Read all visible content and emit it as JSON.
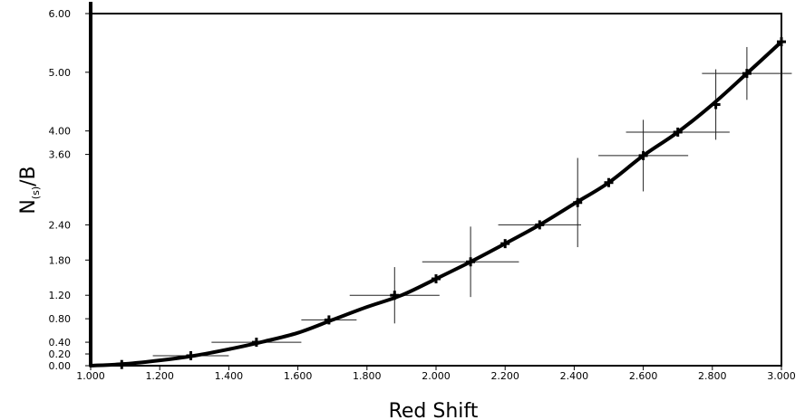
{
  "chart_data": {
    "type": "scatter",
    "xlabel": "Red Shift",
    "ylabel_main": "N",
    "ylabel_sub": "(s)",
    "ylabel_tail": "/B",
    "xlim": [
      1.0,
      3.0
    ],
    "ylim": [
      0.0,
      6.0
    ],
    "x_ticks": [
      1.0,
      1.2,
      1.4,
      1.6,
      1.8,
      2.0,
      2.2,
      2.4,
      2.6,
      2.8,
      3.0
    ],
    "x_tick_labels": [
      "1.000",
      "1.200",
      "1.400",
      "1.600",
      "1.800",
      "2.000",
      "2.200",
      "2.400",
      "2.600",
      "2.800",
      "3.000"
    ],
    "y_ticks": [
      0.0,
      0.2,
      0.4,
      0.8,
      1.2,
      1.8,
      2.4,
      3.6,
      4.0,
      5.0,
      6.0
    ],
    "y_tick_labels": [
      "0.00",
      "0.20",
      "0.40",
      "0.80",
      "1.20",
      "1.80",
      "2.40",
      "3.60",
      "4.00",
      "5.00",
      "6.00"
    ],
    "grid": false,
    "fit_curve": {
      "x": [
        1.0,
        1.1,
        1.2,
        1.3,
        1.4,
        1.5,
        1.6,
        1.7,
        1.8,
        1.9,
        2.0,
        2.1,
        2.2,
        2.3,
        2.4,
        2.5,
        2.6,
        2.7,
        2.8,
        2.9,
        3.0
      ],
      "y": [
        0.0,
        0.03,
        0.09,
        0.17,
        0.28,
        0.41,
        0.56,
        0.78,
        1.0,
        1.2,
        1.48,
        1.77,
        2.08,
        2.4,
        2.76,
        3.12,
        3.58,
        3.98,
        4.45,
        4.98,
        5.52
      ]
    },
    "points": [
      {
        "x": 1.09,
        "y": 0.02,
        "xerr": 0.0,
        "yerr": 0.0
      },
      {
        "x": 1.29,
        "y": 0.17,
        "xerr": 0.11,
        "yerr": 0.0
      },
      {
        "x": 1.48,
        "y": 0.4,
        "xerr": 0.13,
        "yerr": 0.0
      },
      {
        "x": 1.69,
        "y": 0.78,
        "xerr": 0.08,
        "yerr": 0.0
      },
      {
        "x": 1.88,
        "y": 1.2,
        "xerr": 0.13,
        "yerr": 0.48
      },
      {
        "x": 2.0,
        "y": 1.48,
        "xerr": 0.0,
        "yerr": 0.0
      },
      {
        "x": 2.1,
        "y": 1.77,
        "xerr": 0.14,
        "yerr": 0.6
      },
      {
        "x": 2.2,
        "y": 2.08,
        "xerr": 0.0,
        "yerr": 0.0
      },
      {
        "x": 2.3,
        "y": 2.4,
        "xerr": 0.12,
        "yerr": 0.0
      },
      {
        "x": 2.41,
        "y": 2.78,
        "xerr": 0.0,
        "yerr": 0.76
      },
      {
        "x": 2.5,
        "y": 3.12,
        "xerr": 0.0,
        "yerr": 0.0
      },
      {
        "x": 2.6,
        "y": 3.58,
        "xerr": 0.13,
        "yerr": 0.61
      },
      {
        "x": 2.7,
        "y": 3.98,
        "xerr": 0.15,
        "yerr": 0.0
      },
      {
        "x": 2.81,
        "y": 4.45,
        "xerr": 0.0,
        "yerr": 0.6
      },
      {
        "x": 2.9,
        "y": 4.98,
        "xerr": 0.13,
        "yerr": 0.45
      },
      {
        "x": 3.0,
        "y": 5.52,
        "xerr": 0.0,
        "yerr": 0.0
      }
    ]
  }
}
